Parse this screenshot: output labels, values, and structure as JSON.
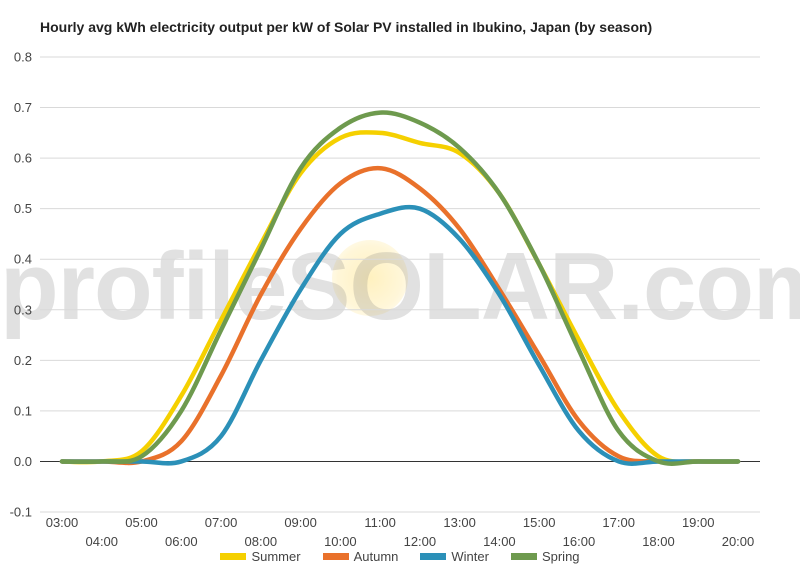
{
  "chart_data": {
    "type": "line",
    "title": "Hourly avg kWh electricity output per kW of Solar PV installed in Ibukino, Japan (by season)",
    "xlabel": "",
    "ylabel": "",
    "ylim": [
      -0.1,
      0.8
    ],
    "yticks": [
      "-0.1",
      "0.0",
      "0.1",
      "0.2",
      "0.3",
      "0.4",
      "0.5",
      "0.6",
      "0.7",
      "0.8"
    ],
    "x": [
      "03:00",
      "04:00",
      "05:00",
      "06:00",
      "07:00",
      "08:00",
      "09:00",
      "10:00",
      "11:00",
      "12:00",
      "13:00",
      "14:00",
      "15:00",
      "16:00",
      "17:00",
      "18:00",
      "19:00",
      "20:00"
    ],
    "grid": true,
    "legend_position": "bottom",
    "series": [
      {
        "name": "Summer",
        "color": "#f5d000",
        "values": [
          0.0,
          0.0,
          0.02,
          0.13,
          0.28,
          0.43,
          0.57,
          0.64,
          0.65,
          0.63,
          0.61,
          0.53,
          0.39,
          0.24,
          0.1,
          0.01,
          0.0,
          0.0
        ]
      },
      {
        "name": "Autumn",
        "color": "#e9712b",
        "values": [
          0.0,
          0.0,
          0.0,
          0.04,
          0.17,
          0.33,
          0.46,
          0.55,
          0.58,
          0.54,
          0.46,
          0.34,
          0.21,
          0.08,
          0.01,
          0.0,
          0.0,
          0.0
        ]
      },
      {
        "name": "Winter",
        "color": "#2b90b8",
        "values": [
          0.0,
          0.0,
          0.0,
          0.0,
          0.05,
          0.2,
          0.34,
          0.45,
          0.49,
          0.5,
          0.44,
          0.33,
          0.19,
          0.06,
          0.0,
          0.0,
          0.0,
          0.0
        ]
      },
      {
        "name": "Spring",
        "color": "#6e9a4e",
        "values": [
          0.0,
          0.0,
          0.01,
          0.1,
          0.26,
          0.42,
          0.58,
          0.66,
          0.69,
          0.67,
          0.62,
          0.53,
          0.39,
          0.22,
          0.06,
          0.0,
          0.0,
          0.0
        ]
      }
    ]
  },
  "watermark": "profileSOLAR.com"
}
